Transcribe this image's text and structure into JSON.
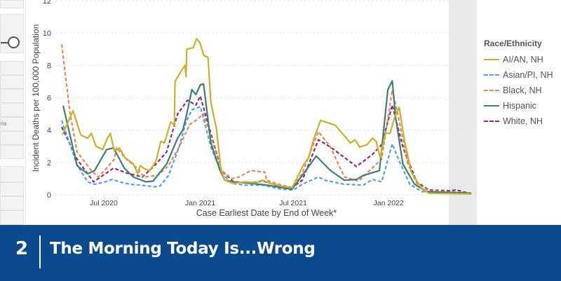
{
  "sidebar": {
    "partial_text": "ns"
  },
  "banner": {
    "number": "2",
    "title": "The Morning Today Is...Wrong"
  },
  "chart_data": {
    "type": "line",
    "title": "",
    "xlabel": "Case Earliest Date by End of Week*",
    "ylabel": "Incident Deaths per 100,000 Population",
    "x_unit": "weeks since early April 2020",
    "xlim": [
      0,
      112
    ],
    "ylim": [
      0,
      12
    ],
    "yticks": [
      0,
      2,
      4,
      6,
      8,
      10,
      12
    ],
    "xticks": [
      {
        "x": 11.5,
        "label": "Jul 2020"
      },
      {
        "x": 37.9,
        "label": "Jan 2021"
      },
      {
        "x": 63.3,
        "label": "Jul 2021"
      },
      {
        "x": 89.4,
        "label": "Jan 2022"
      }
    ],
    "grid": true,
    "legend": {
      "title": "Race/Ethnicity",
      "placement": "right"
    },
    "series": [
      {
        "name": "AI/AN, NH",
        "color": "#c9b02c",
        "dashed": false,
        "points": [
          [
            0.2,
            3.7
          ],
          [
            3.1,
            5.2
          ],
          [
            5.2,
            3.7
          ],
          [
            7.1,
            3.5
          ],
          [
            8.1,
            3.8
          ],
          [
            9.4,
            3.0
          ],
          [
            11.2,
            2.8
          ],
          [
            12.3,
            3.4
          ],
          [
            13.3,
            3.8
          ],
          [
            14.4,
            2.7
          ],
          [
            15.8,
            2.9
          ],
          [
            17.3,
            2.3
          ],
          [
            19.6,
            1.9
          ],
          [
            20.8,
            1.3
          ],
          [
            21.5,
            1.8
          ],
          [
            22.7,
            1.6
          ],
          [
            24.0,
            1.5
          ],
          [
            25,
            1.8
          ],
          [
            25.8,
            2.1
          ],
          [
            27.1,
            3.3
          ],
          [
            28.1,
            3.2
          ],
          [
            29.8,
            4.5
          ],
          [
            30.8,
            4.3
          ],
          [
            31.0,
            7.0
          ],
          [
            32.5,
            7.6
          ],
          [
            33.7,
            8.0
          ],
          [
            34.0,
            7.3
          ],
          [
            34.2,
            9.0
          ],
          [
            36.0,
            9.1
          ],
          [
            36.9,
            9.65
          ],
          [
            37.8,
            9.4
          ],
          [
            38.9,
            8.6
          ],
          [
            40,
            8.5
          ],
          [
            40.8,
            5.7
          ],
          [
            42.3,
            4.1
          ],
          [
            43.6,
            1.5
          ],
          [
            44.6,
            0.9
          ],
          [
            47,
            0.7
          ],
          [
            50,
            0.8
          ],
          [
            53,
            0.75
          ],
          [
            55,
            0.9
          ],
          [
            57,
            0.7
          ],
          [
            59,
            0.6
          ],
          [
            61,
            0.5
          ],
          [
            63,
            0.45
          ],
          [
            64.7,
            1.2
          ],
          [
            66,
            1.8
          ],
          [
            67.5,
            2.3
          ],
          [
            69,
            3.5
          ],
          [
            70.8,
            4.6
          ],
          [
            74.8,
            4.3
          ],
          [
            79,
            3.2
          ],
          [
            80.2,
            3.4
          ],
          [
            81.5,
            2.95
          ],
          [
            83.5,
            3.1
          ],
          [
            85,
            3.5
          ],
          [
            86,
            3.3
          ],
          [
            87.1,
            2.3
          ],
          [
            88.5,
            3.8
          ],
          [
            89.8,
            3.8
          ],
          [
            91.2,
            4.9
          ],
          [
            92.3,
            5.4
          ],
          [
            93.7,
            3.4
          ],
          [
            95.6,
            1.4
          ],
          [
            98.5,
            0.35
          ],
          [
            100.4,
            0.1
          ],
          [
            112,
            0.05
          ]
        ]
      },
      {
        "name": "Asian/PI, NH",
        "color": "#5b9bf0",
        "dashed": true,
        "points": [
          [
            0,
            4.6
          ],
          [
            4.2,
            1.85
          ],
          [
            7.1,
            0.8
          ],
          [
            9,
            0.65
          ],
          [
            11.9,
            0.8
          ],
          [
            13.8,
            0.95
          ],
          [
            15.8,
            0.8
          ],
          [
            18.7,
            0.65
          ],
          [
            21.5,
            0.6
          ],
          [
            25.4,
            0.5
          ],
          [
            26.9,
            0.55
          ],
          [
            29.2,
            1.2
          ],
          [
            32.1,
            2.95
          ],
          [
            34,
            4.5
          ],
          [
            35.6,
            5.25
          ],
          [
            37.9,
            5.45
          ],
          [
            38.8,
            4.7
          ],
          [
            40.8,
            2.95
          ],
          [
            43.7,
            1.35
          ],
          [
            46.5,
            0.7
          ],
          [
            50,
            0.6
          ],
          [
            55,
            0.6
          ],
          [
            56,
            0.55
          ],
          [
            60,
            0.35
          ],
          [
            63.3,
            0.3
          ],
          [
            65.8,
            0.65
          ],
          [
            70.2,
            1.1
          ],
          [
            72,
            0.9
          ],
          [
            77.3,
            0.65
          ],
          [
            82.5,
            0.6
          ],
          [
            85,
            0.95
          ],
          [
            87.5,
            0.8
          ],
          [
            90.4,
            3.15
          ],
          [
            92.1,
            2.2
          ],
          [
            95.2,
            0.65
          ],
          [
            98.5,
            0.2
          ],
          [
            112,
            0.05
          ]
        ]
      },
      {
        "name": "Black, NH",
        "color": "#e08a5a",
        "dashed": true,
        "points": [
          [
            0,
            9.3
          ],
          [
            2.3,
            5.0
          ],
          [
            4.2,
            2.65
          ],
          [
            8.1,
            1.5
          ],
          [
            10,
            1.1
          ],
          [
            11.9,
            1.55
          ],
          [
            14.4,
            2.2
          ],
          [
            15,
            2.9
          ],
          [
            17.7,
            2.2
          ],
          [
            20.6,
            1.65
          ],
          [
            22.5,
            1.1
          ],
          [
            26.3,
            1.2
          ],
          [
            29.2,
            1.8
          ],
          [
            32.1,
            2.95
          ],
          [
            35,
            4.35
          ],
          [
            36.7,
            4.6
          ],
          [
            38.8,
            5.0
          ],
          [
            40.8,
            3.6
          ],
          [
            43.7,
            1.5
          ],
          [
            46.5,
            1.0
          ],
          [
            48.5,
            1.1
          ],
          [
            51.7,
            1.5
          ],
          [
            55.6,
            1.4
          ],
          [
            56,
            0.9
          ],
          [
            60,
            0.6
          ],
          [
            63.3,
            0.45
          ],
          [
            65.8,
            1.35
          ],
          [
            70.2,
            3.9
          ],
          [
            73.5,
            2.95
          ],
          [
            77.3,
            1.1
          ],
          [
            81.2,
            0.85
          ],
          [
            86.3,
            1.95
          ],
          [
            87.5,
            2.2
          ],
          [
            90.4,
            6.5
          ],
          [
            92.1,
            4.8
          ],
          [
            94.6,
            1.95
          ],
          [
            97.1,
            0.7
          ],
          [
            100.4,
            0.25
          ],
          [
            112,
            0.1
          ]
        ]
      },
      {
        "name": "Hispanic",
        "color": "#3f7f72",
        "dashed": false,
        "points": [
          [
            0.4,
            5.5
          ],
          [
            4.2,
            1.8
          ],
          [
            7.1,
            1.3
          ],
          [
            9,
            1.5
          ],
          [
            12.3,
            2.8
          ],
          [
            14.2,
            2.9
          ],
          [
            17.1,
            1.65
          ],
          [
            19.6,
            1.1
          ],
          [
            23,
            0.8
          ],
          [
            25,
            0.85
          ],
          [
            28.7,
            1.9
          ],
          [
            31.7,
            3.5
          ],
          [
            33.1,
            4.0
          ],
          [
            34,
            4.8
          ],
          [
            35.6,
            6.5
          ],
          [
            36.7,
            6.2
          ],
          [
            37.9,
            6.8
          ],
          [
            38.8,
            6.85
          ],
          [
            40.8,
            3.2
          ],
          [
            43.3,
            1.5
          ],
          [
            44.6,
            0.9
          ],
          [
            47,
            0.8
          ],
          [
            52,
            0.7
          ],
          [
            56,
            0.6
          ],
          [
            60,
            0.45
          ],
          [
            63,
            0.35
          ],
          [
            65.8,
            1.2
          ],
          [
            69.6,
            2.4
          ],
          [
            73.5,
            1.5
          ],
          [
            77.3,
            0.9
          ],
          [
            80.6,
            0.95
          ],
          [
            82.5,
            1.2
          ],
          [
            86.9,
            1.5
          ],
          [
            89.2,
            6.5
          ],
          [
            90.4,
            7.05
          ],
          [
            91.3,
            4.8
          ],
          [
            93.3,
            1.9
          ],
          [
            96.5,
            0.65
          ],
          [
            99.8,
            0.2
          ],
          [
            112,
            0.1
          ]
        ]
      },
      {
        "name": "White, NH",
        "color": "#8e2a7a",
        "dashed": true,
        "points": [
          [
            0,
            4.2
          ],
          [
            4.2,
            2.2
          ],
          [
            8.7,
            0.8
          ],
          [
            14.2,
            1.65
          ],
          [
            17.7,
            1.35
          ],
          [
            22.1,
            1.1
          ],
          [
            25.4,
            1.8
          ],
          [
            28.7,
            2.65
          ],
          [
            31.7,
            5.0
          ],
          [
            34.4,
            5.85
          ],
          [
            36.7,
            5.55
          ],
          [
            37.9,
            6.1
          ],
          [
            40.8,
            3.8
          ],
          [
            43.7,
            1.5
          ],
          [
            47,
            0.8
          ],
          [
            52,
            0.75
          ],
          [
            55,
            0.85
          ],
          [
            60,
            0.5
          ],
          [
            63,
            0.45
          ],
          [
            65.8,
            0.9
          ],
          [
            70.2,
            3.4
          ],
          [
            73.5,
            2.95
          ],
          [
            80.6,
            1.75
          ],
          [
            85,
            2.5
          ],
          [
            87.5,
            3.1
          ],
          [
            90.4,
            5.55
          ],
          [
            93.3,
            2.95
          ],
          [
            97.1,
            0.8
          ],
          [
            100.4,
            0.3
          ],
          [
            106,
            0.25
          ],
          [
            108,
            0.3
          ],
          [
            112,
            0.05
          ]
        ]
      }
    ]
  }
}
